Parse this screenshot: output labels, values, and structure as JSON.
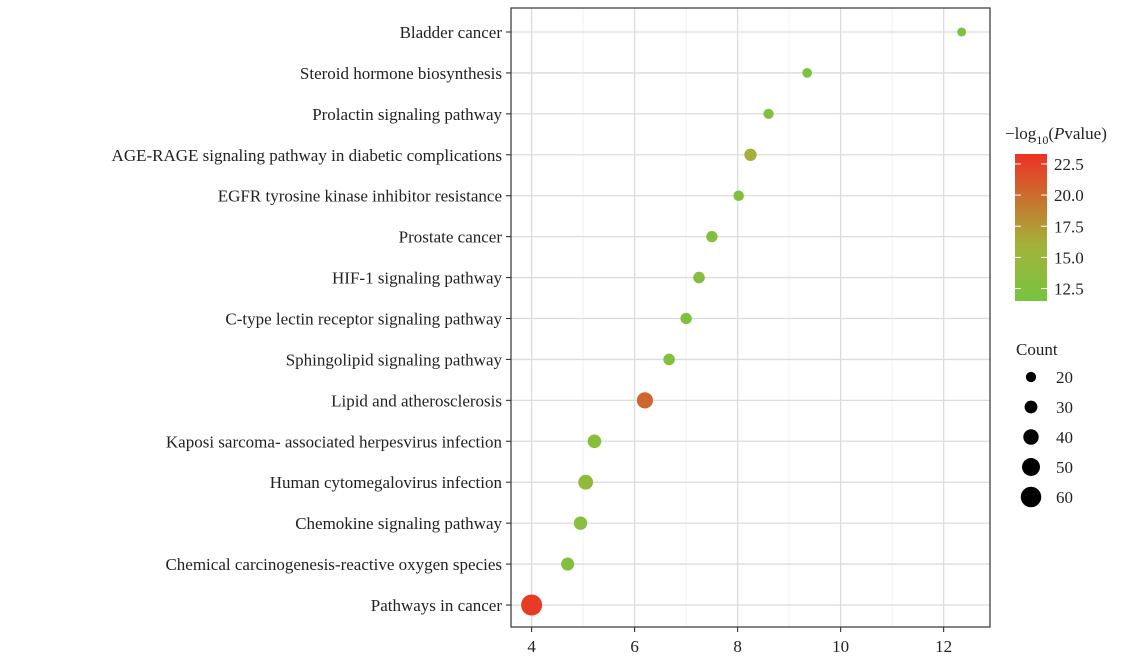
{
  "chart_data": {
    "type": "scatter",
    "title": "",
    "xlabel": "",
    "ylabel": "",
    "xlim": [
      3.6,
      12.9
    ],
    "x_ticks": [
      4,
      6,
      8,
      10,
      12
    ],
    "grid": true,
    "categories": [
      "Bladder cancer",
      "Steroid hormone biosynthesis",
      "Prolactin signaling pathway",
      "AGE-RAGE signaling pathway in diabetic complications",
      "EGFR tyrosine kinase inhibitor resistance",
      "Prostate cancer",
      "HIF-1 signaling pathway",
      "C-type lectin receptor signaling pathway",
      "Sphingolipid signaling pathway",
      "Lipid and atherosclerosis",
      "Kaposi sarcoma- associated herpesvirus infection",
      "Human cytomegalovirus infection",
      "Chemokine signaling pathway",
      "Chemical carcinogenesis-reactive oxygen species",
      "Pathways in cancer"
    ],
    "points": [
      {
        "term": "Bladder cancer",
        "x": 12.35,
        "count": 15,
        "neglog10p": 12.0
      },
      {
        "term": "Steroid hormone biosynthesis",
        "x": 9.35,
        "count": 18,
        "neglog10p": 12.2
      },
      {
        "term": "Prolactin signaling pathway",
        "x": 8.6,
        "count": 20,
        "neglog10p": 12.8
      },
      {
        "term": "AGE-RAGE signaling pathway in diabetic complications",
        "x": 8.25,
        "count": 28,
        "neglog10p": 16.2
      },
      {
        "term": "EGFR tyrosine kinase inhibitor resistance",
        "x": 8.02,
        "count": 21,
        "neglog10p": 12.3
      },
      {
        "term": "Prostate cancer",
        "x": 7.5,
        "count": 24,
        "neglog10p": 12.6
      },
      {
        "term": "HIF-1 signaling pathway",
        "x": 7.25,
        "count": 25,
        "neglog10p": 12.9
      },
      {
        "term": "C-type lectin receptor signaling pathway",
        "x": 7.0,
        "count": 24,
        "neglog10p": 12.4
      },
      {
        "term": "Sphingolipid signaling pathway",
        "x": 6.67,
        "count": 25,
        "neglog10p": 12.6
      },
      {
        "term": "Lipid and atherosclerosis",
        "x": 6.2,
        "count": 43,
        "neglog10p": 20.3
      },
      {
        "term": "Kaposi sarcoma- associated herpesvirus infection",
        "x": 5.22,
        "count": 33,
        "neglog10p": 13.3
      },
      {
        "term": "Human cytomegalovirus infection",
        "x": 5.05,
        "count": 38,
        "neglog10p": 14.2
      },
      {
        "term": "Chemokine signaling pathway",
        "x": 4.95,
        "count": 32,
        "neglog10p": 13.0
      },
      {
        "term": "Chemical carcinogenesis-reactive oxygen species",
        "x": 4.7,
        "count": 31,
        "neglog10p": 12.7
      },
      {
        "term": "Pathways in cancer",
        "x": 4.0,
        "count": 62,
        "neglog10p": 22.8
      }
    ],
    "color_legend": {
      "title": "−log10(Pvalue)",
      "title_base": "−log",
      "title_sub": "10",
      "title_paren_open": "(",
      "title_italic": "P",
      "title_rest": "value)",
      "range": [
        11.5,
        23.3
      ],
      "ticks": [
        22.5,
        20.0,
        17.5,
        15.0,
        12.5
      ],
      "tick_labels": [
        "22.5",
        "20.0",
        "17.5",
        "15.0",
        "12.5"
      ],
      "low_color": "#77c341",
      "mid_color": "#a3b33a",
      "high_color": "#ee3124"
    },
    "size_legend": {
      "title": "Count",
      "values": [
        20,
        30,
        40,
        50,
        60
      ],
      "labels": [
        "20",
        "30",
        "40",
        "50",
        "60"
      ]
    }
  }
}
